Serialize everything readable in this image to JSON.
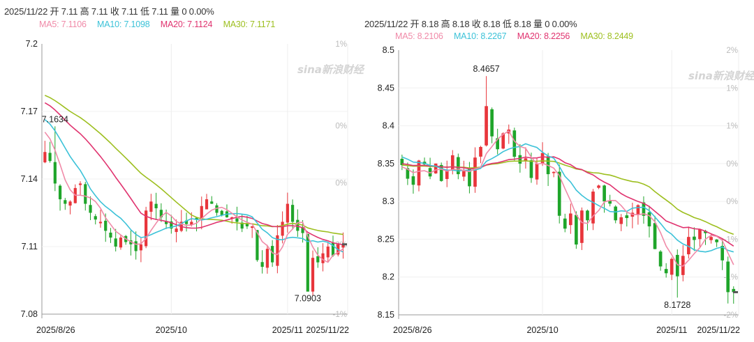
{
  "chart_data": [
    {
      "type": "candlestick",
      "header": "2025/11/22 开 7.11 高 7.11 收 7.11 低 7.11 量 0 0.00%",
      "ma_legend": [
        {
          "label": "MA5: 7.1106",
          "color": "#f08aa8"
        },
        {
          "label": "MA10: 7.1098",
          "color": "#3cc2d8"
        },
        {
          "label": "MA20: 7.1124",
          "color": "#e0336f"
        },
        {
          "label": "MA30: 7.1171",
          "color": "#9dbf1f"
        }
      ],
      "y_ticks": [
        {
          "v": 7.2,
          "t": "7.2"
        },
        {
          "v": 7.17,
          "t": "7.17"
        },
        {
          "v": 7.14,
          "t": "7.14"
        },
        {
          "v": 7.11,
          "t": "7.11"
        },
        {
          "v": 7.08,
          "t": "7.08"
        }
      ],
      "pct_ticks": [
        {
          "v": 7.2,
          "t": "1%"
        },
        {
          "v": 7.1637,
          "t": "0%"
        },
        {
          "v": 7.1383,
          "t": "0%"
        },
        {
          "v": 7.111,
          "t": "0%"
        },
        {
          "v": 7.08,
          "t": "-1%"
        }
      ],
      "ylim": [
        7.08,
        7.2
      ],
      "x_ticks": [
        {
          "i": 0,
          "t": "2025/8/26"
        },
        {
          "i": 25,
          "t": "2025/10"
        },
        {
          "i": 48,
          "t": "2025/11"
        },
        {
          "i": 58,
          "t": "2025/11/22"
        }
      ],
      "annotations": [
        {
          "text": "7.1634",
          "i": 2,
          "v": 7.1634,
          "pos": "above"
        },
        {
          "text": "7.0903",
          "i": 52,
          "v": 7.0903,
          "pos": "below"
        }
      ],
      "watermark": "sina新浪财经",
      "closes": [
        7.152,
        7.148,
        7.138,
        7.131,
        7.129,
        7.13,
        7.136,
        7.138,
        7.129,
        7.125,
        7.122,
        7.121,
        7.117,
        7.114,
        7.11,
        7.114,
        7.112,
        7.111,
        7.108,
        7.111,
        7.126,
        7.13,
        7.127,
        7.123,
        7.12,
        7.118,
        7.118,
        7.121,
        7.12,
        7.121,
        7.122,
        7.128,
        7.131,
        7.129,
        7.125,
        7.124,
        7.123,
        7.123,
        7.121,
        7.118,
        7.119,
        7.119,
        7.104,
        7.101,
        7.109,
        7.103,
        7.115,
        7.121,
        7.129,
        7.121,
        7.117,
        7.116,
        7.09,
        7.105,
        7.103,
        7.107,
        7.11,
        7.106,
        7.111,
        7.111
      ],
      "ma5_start": 7.163,
      "ma10_start": 7.168,
      "ma20_start": 7.175,
      "ma30_start": 7.178
    },
    {
      "type": "candlestick",
      "header": "2025/11/22 开 8.18 高 8.18 收 8.18 低 8.18 量 0 0.00%",
      "ma_legend": [
        {
          "label": "MA5: 8.2106",
          "color": "#f08aa8"
        },
        {
          "label": "MA10: 8.2267",
          "color": "#3cc2d8"
        },
        {
          "label": "MA20: 8.2256",
          "color": "#e0336f"
        },
        {
          "label": "MA30: 8.2449",
          "color": "#9dbf1f"
        }
      ],
      "y_ticks": [
        {
          "v": 8.5,
          "t": "8.5"
        },
        {
          "v": 8.45,
          "t": "8.45"
        },
        {
          "v": 8.4,
          "t": "8.4"
        },
        {
          "v": 8.35,
          "t": "8.35"
        },
        {
          "v": 8.3,
          "t": "8.3"
        },
        {
          "v": 8.25,
          "t": "8.25"
        },
        {
          "v": 8.2,
          "t": "8.2"
        },
        {
          "v": 8.15,
          "t": "8.15"
        }
      ],
      "pct_ticks": [
        {
          "v": 8.5,
          "t": "2%"
        },
        {
          "v": 8.45,
          "t": "1%"
        },
        {
          "v": 8.4,
          "t": "1%"
        },
        {
          "v": 8.35,
          "t": "0%"
        },
        {
          "v": 8.3,
          "t": "0%"
        },
        {
          "v": 8.25,
          "t": "-1%"
        },
        {
          "v": 8.2,
          "t": "-1%"
        },
        {
          "v": 8.15,
          "t": "-2%"
        }
      ],
      "ylim": [
        8.15,
        8.5
      ],
      "x_ticks": [
        {
          "i": 0,
          "t": "2025/8/26"
        },
        {
          "i": 25,
          "t": "2025/10"
        },
        {
          "i": 48,
          "t": "2025/11"
        },
        {
          "i": 58,
          "t": "2025/11/22"
        }
      ],
      "annotations": [
        {
          "text": "8.4657",
          "i": 15,
          "v": 8.4657,
          "pos": "above"
        },
        {
          "text": "8.1728",
          "i": 49,
          "v": 8.1728,
          "pos": "below"
        }
      ],
      "watermark": "sina新浪财经",
      "closes": [
        8.348,
        8.33,
        8.322,
        8.354,
        8.349,
        8.333,
        8.35,
        8.327,
        8.34,
        8.361,
        8.336,
        8.34,
        8.32,
        8.358,
        8.372,
        8.426,
        8.386,
        8.369,
        8.39,
        8.395,
        8.359,
        8.35,
        8.357,
        8.331,
        8.35,
        8.364,
        8.336,
        8.339,
        8.281,
        8.264,
        8.284,
        8.243,
        8.288,
        8.275,
        8.313,
        8.321,
        8.3,
        8.297,
        8.275,
        8.279,
        8.278,
        8.285,
        8.295,
        8.281,
        8.267,
        8.237,
        8.214,
        8.205,
        8.224,
        8.201,
        8.228,
        8.253,
        8.249,
        8.263,
        8.258,
        8.253,
        8.246,
        8.222,
        8.18,
        8.18
      ],
      "ma5_start": 8.345,
      "ma10_start": 8.36,
      "ma20_start": 8.35,
      "ma30_start": 8.348
    }
  ]
}
